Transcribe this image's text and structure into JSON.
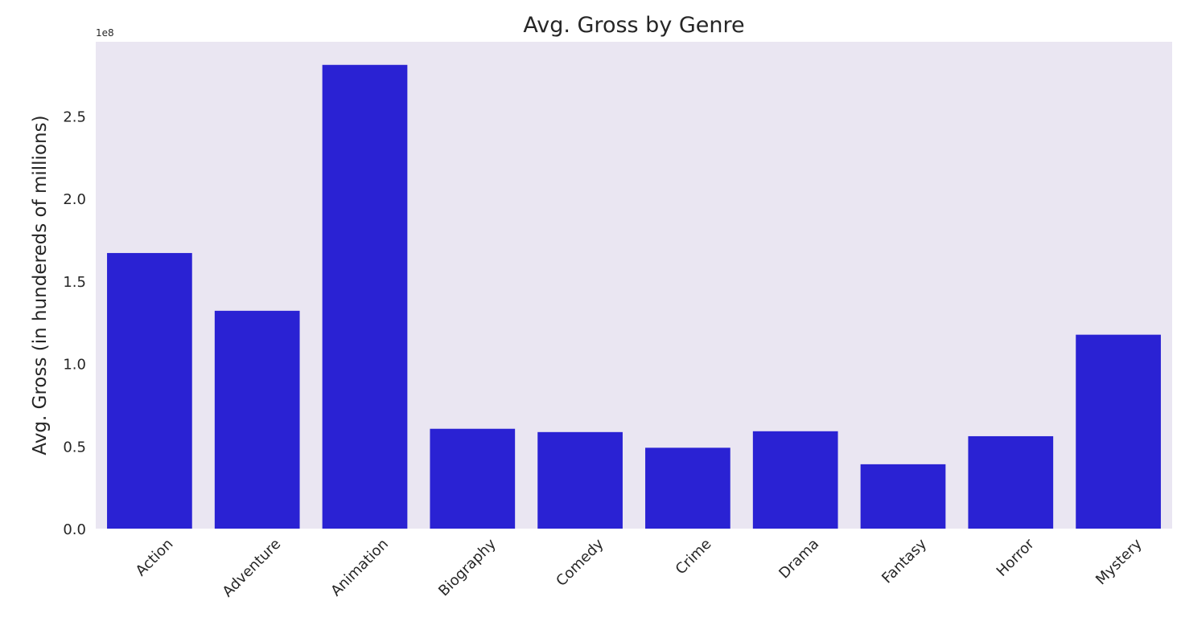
{
  "chart_data": {
    "type": "bar",
    "title": "Avg. Gross by Genre",
    "xlabel": "",
    "ylabel": "Avg. Gross (in hundereds of millions)",
    "y_offset_label": "1e8",
    "categories": [
      "Action",
      "Adventure",
      "Animation",
      "Biography",
      "Comedy",
      "Crime",
      "Drama",
      "Fantasy",
      "Horror",
      "Mystery"
    ],
    "values": [
      167000000,
      132000000,
      281000000,
      60500000,
      58500000,
      49000000,
      59000000,
      39000000,
      56000000,
      117500000
    ],
    "ylim": [
      0,
      295000000
    ],
    "yticks": [
      0,
      50000000,
      100000000,
      150000000,
      200000000,
      250000000
    ],
    "ytick_labels": [
      "0.0",
      "0.5",
      "1.0",
      "1.5",
      "2.0",
      "2.5"
    ],
    "grid": false,
    "colors": {
      "bar": "#2a22d3",
      "plot_background": "#eae6f2",
      "page_background": "#ffffff",
      "text": "#262626"
    }
  }
}
